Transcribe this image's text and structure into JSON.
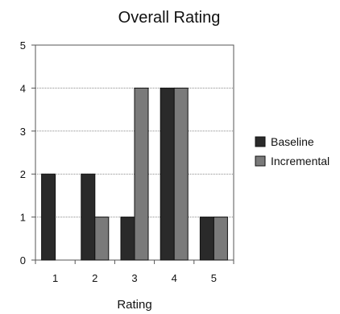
{
  "chart_data": {
    "type": "bar",
    "title": "Overall Rating",
    "xlabel": "Rating",
    "ylabel": "",
    "categories": [
      "1",
      "2",
      "3",
      "4",
      "5"
    ],
    "series": [
      {
        "name": "Baseline",
        "values": [
          2,
          2,
          1,
          4,
          1
        ],
        "color": "#2a2a2a"
      },
      {
        "name": "Incremental",
        "values": [
          0,
          1,
          4,
          4,
          1
        ],
        "color": "#7a7a7a"
      }
    ],
    "ylim": [
      0,
      5
    ],
    "yticks": [
      "0",
      "1",
      "2",
      "3",
      "4",
      "5"
    ],
    "grid": true,
    "legend_position": "right"
  }
}
